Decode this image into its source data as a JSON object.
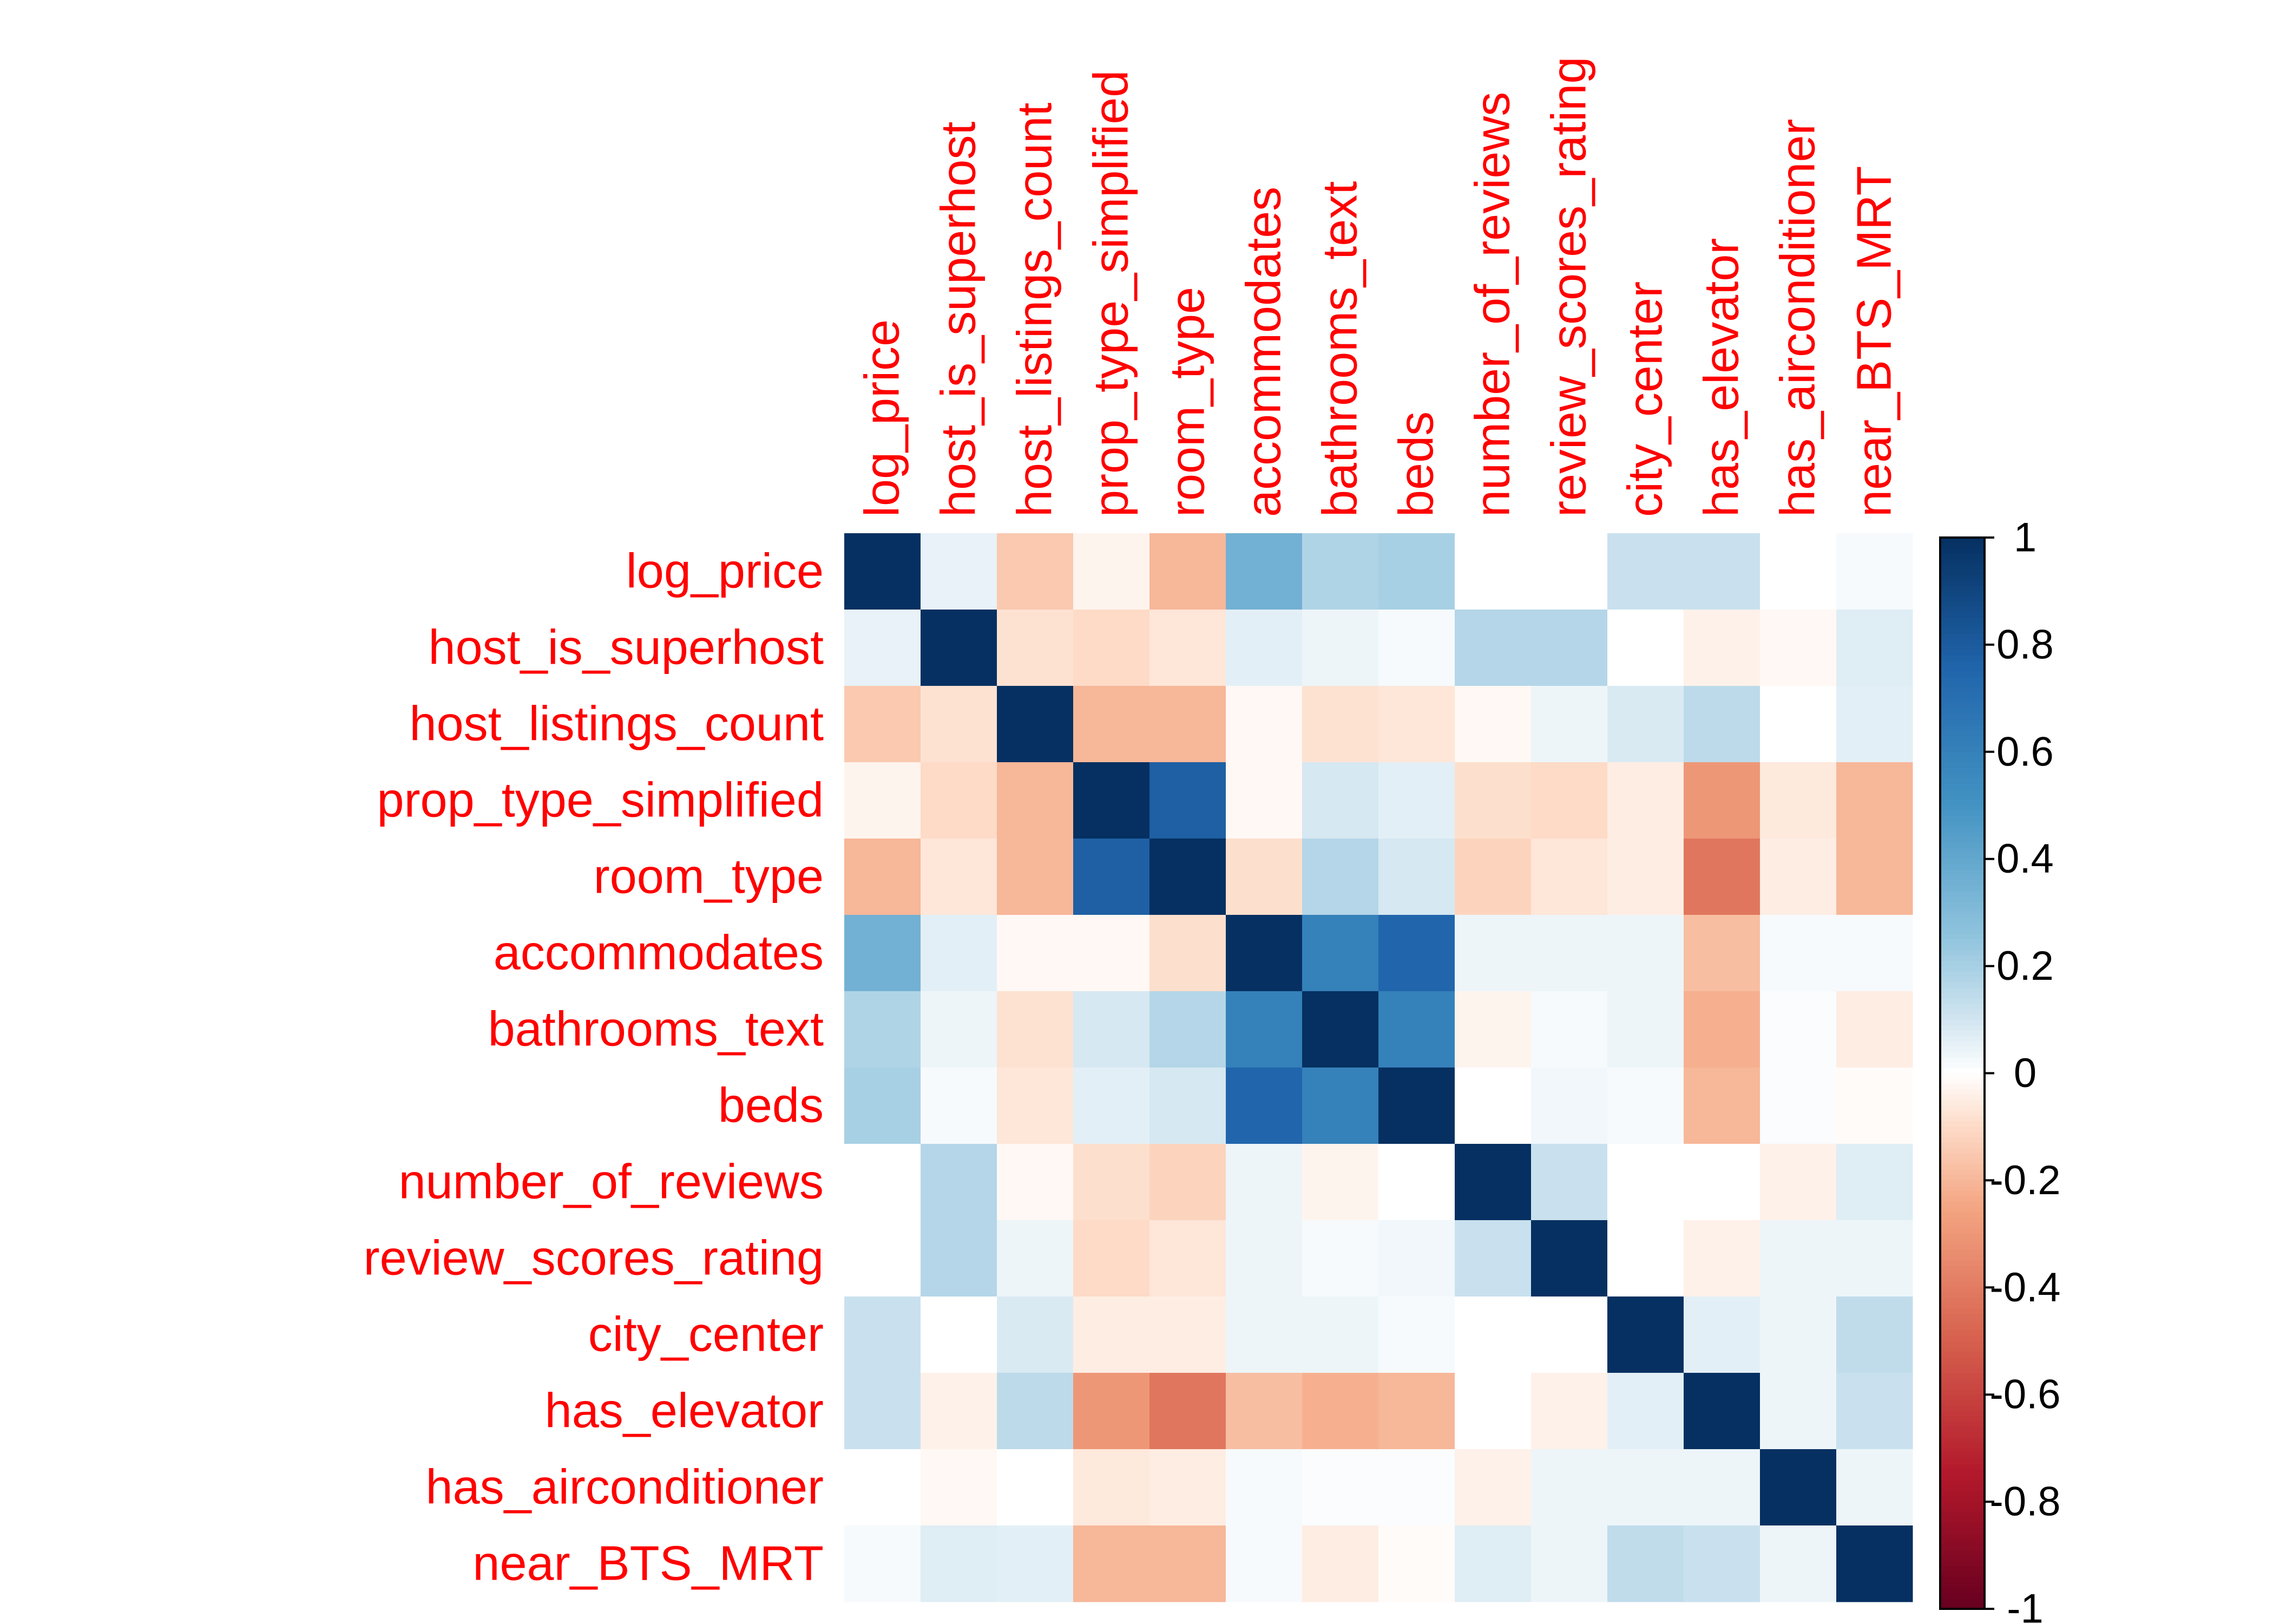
{
  "chart_data": {
    "type": "heatmap",
    "variables": [
      "log_price",
      "host_is_superhost",
      "host_listings_count",
      "prop_type_simplified",
      "room_type",
      "accommodates",
      "bathrooms_text",
      "beds",
      "number_of_reviews",
      "review_scores_rating",
      "city_center",
      "has_elevator",
      "has_airconditioner",
      "near_BTS_MRT"
    ],
    "matrix": [
      [
        1.0,
        0.05,
        -0.15,
        -0.03,
        -0.2,
        0.35,
        0.18,
        0.2,
        0.0,
        0.0,
        0.12,
        0.12,
        0.0,
        0.02
      ],
      [
        0.05,
        1.0,
        -0.08,
        -0.1,
        -0.07,
        0.06,
        0.04,
        0.02,
        0.17,
        0.17,
        0.0,
        -0.04,
        -0.02,
        0.07
      ],
      [
        -0.15,
        -0.08,
        1.0,
        -0.2,
        -0.2,
        -0.02,
        -0.08,
        -0.07,
        -0.02,
        0.04,
        0.08,
        0.15,
        0.0,
        0.06
      ],
      [
        -0.03,
        -0.1,
        -0.2,
        1.0,
        0.78,
        -0.02,
        0.09,
        0.06,
        -0.09,
        -0.1,
        -0.05,
        -0.3,
        -0.06,
        -0.2
      ],
      [
        -0.2,
        -0.07,
        -0.2,
        0.78,
        1.0,
        -0.09,
        0.17,
        0.09,
        -0.12,
        -0.07,
        -0.05,
        -0.42,
        -0.05,
        -0.2
      ],
      [
        0.35,
        0.06,
        -0.02,
        -0.02,
        -0.09,
        1.0,
        0.6,
        0.75,
        0.04,
        0.04,
        0.04,
        -0.18,
        0.02,
        0.02
      ],
      [
        0.18,
        0.04,
        -0.08,
        0.09,
        0.17,
        0.6,
        1.0,
        0.6,
        -0.03,
        0.02,
        0.04,
        -0.22,
        0.01,
        -0.05
      ],
      [
        0.2,
        0.02,
        -0.07,
        0.06,
        0.09,
        0.75,
        0.6,
        1.0,
        0.0,
        0.03,
        0.02,
        -0.2,
        0.01,
        -0.01
      ],
      [
        0.0,
        0.17,
        -0.02,
        -0.09,
        -0.12,
        0.04,
        -0.03,
        0.0,
        1.0,
        0.12,
        0.0,
        0.0,
        -0.04,
        0.07
      ],
      [
        0.0,
        0.17,
        0.04,
        -0.1,
        -0.07,
        0.04,
        0.02,
        0.03,
        0.12,
        1.0,
        0.0,
        -0.04,
        0.04,
        0.04
      ],
      [
        0.12,
        0.0,
        0.08,
        -0.05,
        -0.05,
        0.04,
        0.04,
        0.02,
        0.0,
        0.0,
        1.0,
        0.06,
        0.04,
        0.14
      ],
      [
        0.12,
        -0.04,
        0.15,
        -0.3,
        -0.42,
        -0.18,
        -0.22,
        -0.2,
        0.0,
        -0.04,
        0.06,
        1.0,
        0.04,
        0.12
      ],
      [
        0.0,
        -0.02,
        0.0,
        -0.06,
        -0.05,
        0.02,
        0.01,
        0.01,
        -0.04,
        0.04,
        0.04,
        0.04,
        1.0,
        0.04
      ],
      [
        0.02,
        0.07,
        0.06,
        -0.2,
        -0.2,
        0.02,
        -0.05,
        -0.01,
        0.07,
        0.04,
        0.14,
        0.12,
        0.04,
        1.0
      ]
    ],
    "colorbar": {
      "range": [
        -1,
        1
      ],
      "ticks": [
        "1",
        "0.8",
        "0.6",
        "0.4",
        "0.2",
        "0",
        "-0.2",
        "-0.4",
        "-0.6",
        "-0.8",
        "-1"
      ]
    },
    "label_color": "#FF0000",
    "colors": {
      "negative_strong": "#67001F",
      "neutral": "#FFFFFF",
      "positive_strong": "#053061"
    }
  }
}
